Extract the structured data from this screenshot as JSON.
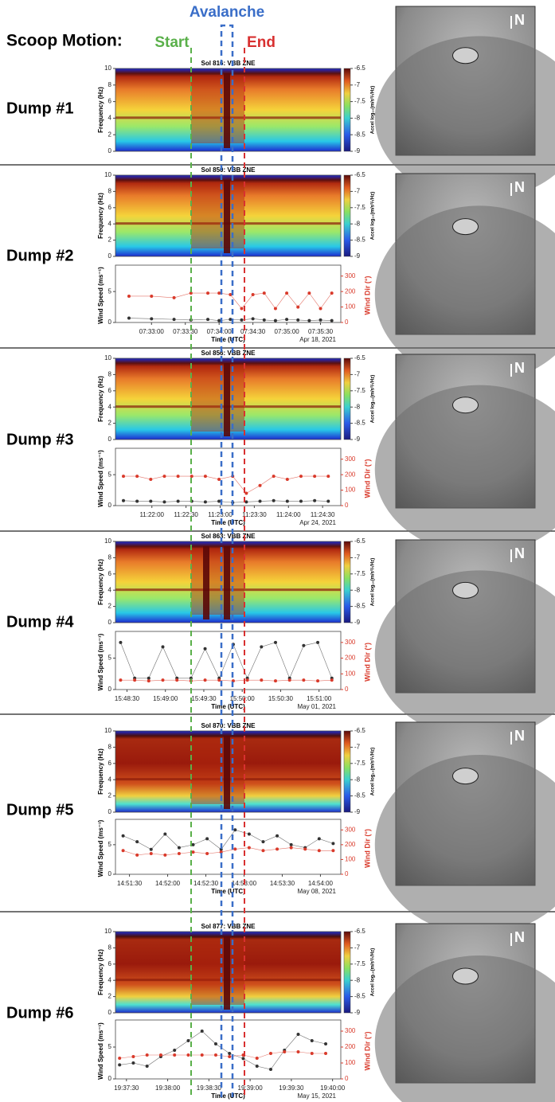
{
  "header": {
    "title": "Scoop Motion:",
    "start": "Start",
    "avalanche": "Avalanche",
    "end": "End"
  },
  "panels": [
    {
      "label": "Dump #1",
      "compass": "N",
      "spectrogram": {
        "title": "Sol 816: VBB ZNE",
        "ylabel": "Frequency (Hz)",
        "ylim": [
          0,
          10
        ],
        "yticks": [
          0,
          2,
          4,
          6,
          8,
          10
        ],
        "colorbar": {
          "label": "Accel log₁₀(m/s²/√Hz)",
          "lim": [
            -9,
            -6.5
          ],
          "ticks": [
            -6.5,
            -7,
            -7.5,
            -8,
            -8.5,
            -9
          ]
        }
      }
    },
    {
      "label": "Dump #2",
      "compass": "N",
      "spectrogram": {
        "title": "Sol 850: VBB ZNE",
        "ylabel": "Frequency (Hz)",
        "ylim": [
          0,
          10
        ],
        "yticks": [
          0,
          2,
          4,
          6,
          8,
          10
        ],
        "colorbar": {
          "label": "Accel log₁₀(m/s²/√Hz)",
          "lim": [
            -9,
            -6.5
          ],
          "ticks": [
            -6.5,
            -7,
            -7.5,
            -8,
            -8.5,
            -9
          ]
        }
      },
      "wind": {
        "type": "scatter",
        "xlabel": "Time (UTC)",
        "ylabel": "Wind Speed (ms⁻¹)",
        "y2label": "Wind Dir (°)",
        "date": "Apr 18, 2021",
        "xlim": [
          "07:32:28",
          "07:35:48"
        ],
        "xticks": [
          "07:33:00",
          "07:33:30",
          "07:34:00",
          "07:34:30",
          "07:35:00",
          "07:35:30"
        ],
        "ylim": [
          0,
          8.75
        ],
        "yticks": [
          0,
          5
        ],
        "y2lim": [
          0,
          350
        ],
        "y2ticks": [
          0,
          100,
          200,
          300
        ],
        "x": [
          "07:32:40",
          "07:33:00",
          "07:33:20",
          "07:33:35",
          "07:33:50",
          "07:34:00",
          "07:34:10",
          "07:34:20",
          "07:34:30",
          "07:34:40",
          "07:34:50",
          "07:35:00",
          "07:35:10",
          "07:35:20",
          "07:35:30",
          "07:35:40"
        ],
        "series": [
          {
            "color": "#333333",
            "values": [
              0.7,
              0.6,
              0.5,
              0.4,
              0.5,
              0.3,
              0.5,
              0.4,
              0.6,
              0.4,
              0.3,
              0.5,
              0.4,
              0.3,
              0.4,
              0.3
            ]
          },
          {
            "color": "#d93a2b",
            "axis": "y2",
            "values": [
              170,
              170,
              160,
              190,
              190,
              190,
              180,
              90,
              180,
              190,
              90,
              190,
              100,
              190,
              90,
              190
            ]
          }
        ]
      }
    },
    {
      "label": "Dump #3",
      "compass": "N",
      "spectrogram": {
        "title": "Sol 856: VBB ZNE",
        "ylabel": "Frequency (Hz)",
        "ylim": [
          0,
          10
        ],
        "yticks": [
          0,
          2,
          4,
          6,
          8,
          10
        ],
        "colorbar": {
          "label": "Accel log₁₀(m/s²/√Hz)",
          "lim": [
            -9,
            -6.5
          ],
          "ticks": [
            -6.5,
            -7,
            -7.5,
            -8,
            -8.5,
            -9
          ]
        }
      },
      "wind": {
        "type": "scatter",
        "xlabel": "Time (UTC)",
        "ylabel": "Wind Speed (ms⁻¹)",
        "y2label": "Wind Dir (°)",
        "date": "Apr 24, 2021",
        "xlim": [
          "11:21:28",
          "11:24:46"
        ],
        "xticks": [
          "11:22:00",
          "11:22:30",
          "11:23:00",
          "11:23:30",
          "11:24:00",
          "11:24:30"
        ],
        "ylim": [
          0,
          8.75
        ],
        "yticks": [
          0,
          5
        ],
        "y2lim": [
          0,
          350
        ],
        "y2ticks": [
          0,
          100,
          200,
          300
        ],
        "x": [
          "11:21:35",
          "11:21:47",
          "11:21:59",
          "11:22:11",
          "11:22:23",
          "11:22:35",
          "11:22:47",
          "11:22:59",
          "11:23:11",
          "11:23:23",
          "11:23:35",
          "11:23:47",
          "11:23:59",
          "11:24:11",
          "11:24:23",
          "11:24:35"
        ],
        "series": [
          {
            "color": "#333333",
            "values": [
              0.8,
              0.7,
              0.7,
              0.6,
              0.7,
              0.7,
              0.6,
              0.7,
              0.5,
              0.6,
              0.7,
              0.8,
              0.7,
              0.7,
              0.8,
              0.7
            ]
          },
          {
            "color": "#d93a2b",
            "axis": "y2",
            "values": [
              190,
              190,
              170,
              190,
              190,
              190,
              190,
              170,
              190,
              80,
              130,
              190,
              170,
              190,
              190,
              190
            ]
          }
        ]
      }
    },
    {
      "label": "Dump #4",
      "compass": "N",
      "spectrogram": {
        "title": "Sol 863: VBB ZNE",
        "ylabel": "Frequency (Hz)",
        "ylim": [
          0,
          10
        ],
        "yticks": [
          0,
          2,
          4,
          6,
          8,
          10
        ],
        "colorbar": {
          "label": "Accel log₁₀(m/s²/√Hz)",
          "lim": [
            -9,
            -6.5
          ],
          "ticks": [
            -6.5,
            -7,
            -7.5,
            -8,
            -8.5,
            -9
          ]
        }
      },
      "wind": {
        "type": "scatter",
        "xlabel": "Time (UTC)",
        "ylabel": "Wind Speed (ms⁻¹)",
        "y2label": "Wind Dir (°)",
        "date": "May 01, 2021",
        "xlim": [
          "15:48:21",
          "15:51:17"
        ],
        "xticks": [
          "15:48:30",
          "15:49:00",
          "15:49:30",
          "15:50:00",
          "15:50:30",
          "15:51:00"
        ],
        "ylim": [
          0,
          8.75
        ],
        "yticks": [
          0,
          5
        ],
        "y2lim": [
          0,
          350
        ],
        "y2ticks": [
          0,
          100,
          200,
          300
        ],
        "x": [
          "15:48:25",
          "15:48:36",
          "15:48:47",
          "15:48:58",
          "15:49:09",
          "15:49:20",
          "15:49:31",
          "15:49:42",
          "15:49:53",
          "15:50:04",
          "15:50:15",
          "15:50:26",
          "15:50:37",
          "15:50:48",
          "15:50:59",
          "15:51:10"
        ],
        "series": [
          {
            "color": "#333333",
            "values": [
              7.5,
              1.8,
              1.8,
              6.8,
              1.8,
              1.8,
              6.5,
              1.8,
              7.2,
              1.8,
              6.8,
              7.5,
              1.8,
              7.0,
              7.5,
              1.8
            ]
          },
          {
            "color": "#d93a2b",
            "axis": "y2",
            "values": [
              60,
              60,
              55,
              60,
              60,
              55,
              60,
              60,
              55,
              60,
              60,
              55,
              60,
              60,
              55,
              60
            ]
          }
        ]
      }
    },
    {
      "label": "Dump #5",
      "compass": "N",
      "spectrogram": {
        "title": "Sol 870: VBB ZNE",
        "ylabel": "Frequency (Hz)",
        "ylim": [
          0,
          10
        ],
        "yticks": [
          0,
          2,
          4,
          6,
          8,
          10
        ],
        "colorbar": {
          "label": "Accel log₁₀(m/s²/√Hz)",
          "lim": [
            -9,
            -6.5
          ],
          "ticks": [
            -6.5,
            -7,
            -7.5,
            -8,
            -8.5,
            -9
          ]
        }
      },
      "wind": {
        "type": "scatter",
        "xlabel": "Time (UTC)",
        "ylabel": "Wind Speed (ms⁻¹)",
        "y2label": "Wind Dir (°)",
        "date": "May 08, 2021",
        "xlim": [
          "14:51:19",
          "14:54:16"
        ],
        "xticks": [
          "14:51:30",
          "14:52:00",
          "14:52:30",
          "14:53:00",
          "14:53:30",
          "14:54:00"
        ],
        "ylim": [
          0,
          8.75
        ],
        "yticks": [
          0,
          5
        ],
        "y2lim": [
          0,
          350
        ],
        "y2ticks": [
          0,
          100,
          200,
          300
        ],
        "x": [
          "14:51:25",
          "14:51:36",
          "14:51:47",
          "14:51:58",
          "14:52:09",
          "14:52:20",
          "14:52:31",
          "14:52:42",
          "14:52:53",
          "14:53:04",
          "14:53:15",
          "14:53:26",
          "14:53:37",
          "14:53:48",
          "14:53:59",
          "14:54:10"
        ],
        "series": [
          {
            "color": "#333333",
            "values": [
              6.5,
              5.5,
              4.2,
              6.8,
              4.5,
              5.0,
              6.0,
              4.2,
              7.5,
              6.8,
              5.5,
              6.5,
              5.0,
              4.5,
              6.0,
              5.2
            ]
          },
          {
            "color": "#d93a2b",
            "axis": "y2",
            "values": [
              160,
              130,
              140,
              130,
              140,
              150,
              140,
              150,
              170,
              180,
              160,
              170,
              180,
              170,
              160,
              160
            ]
          }
        ]
      }
    },
    {
      "label": "Dump #6",
      "compass": "N",
      "spectrogram": {
        "title": "Sol 877: VBB ZNE",
        "ylabel": "Frequency (Hz)",
        "ylim": [
          0,
          10
        ],
        "yticks": [
          0,
          2,
          4,
          6,
          8,
          10
        ],
        "colorbar": {
          "label": "Accel log₁₀(m/s²/√Hz)",
          "lim": [
            -9,
            -6.5
          ],
          "ticks": [
            -6.5,
            -7,
            -7.5,
            -8,
            -8.5,
            -9
          ]
        }
      },
      "wind": {
        "type": "scatter",
        "xlabel": "Time (UTC)",
        "ylabel": "Wind Speed (ms⁻¹)",
        "y2label": "Wind Dir (°)",
        "date": "May 15, 2021",
        "xlim": [
          "19:37:22",
          "19:40:06"
        ],
        "xticks": [
          "19:37:30",
          "19:38:00",
          "19:38:30",
          "19:39:00",
          "19:39:30",
          "19:40:00"
        ],
        "ylim": [
          0,
          8.75
        ],
        "yticks": [
          0,
          5
        ],
        "y2lim": [
          0,
          350
        ],
        "y2ticks": [
          0,
          100,
          200,
          300
        ],
        "x": [
          "19:37:25",
          "19:37:35",
          "19:37:45",
          "19:37:55",
          "19:38:05",
          "19:38:15",
          "19:38:25",
          "19:38:35",
          "19:38:45",
          "19:38:55",
          "19:39:05",
          "19:39:15",
          "19:39:25",
          "19:39:35",
          "19:39:45",
          "19:39:55"
        ],
        "series": [
          {
            "color": "#333333",
            "values": [
              2.2,
              2.5,
              2.0,
              3.5,
              4.5,
              6.0,
              7.5,
              5.5,
              4.0,
              3.2,
              2.0,
              1.5,
              4.5,
              7.0,
              6.0,
              5.5
            ]
          },
          {
            "color": "#d93a2b",
            "axis": "y2",
            "values": [
              130,
              140,
              150,
              150,
              150,
              150,
              150,
              150,
              140,
              150,
              130,
              160,
              170,
              170,
              160,
              160
            ]
          }
        ]
      }
    }
  ]
}
